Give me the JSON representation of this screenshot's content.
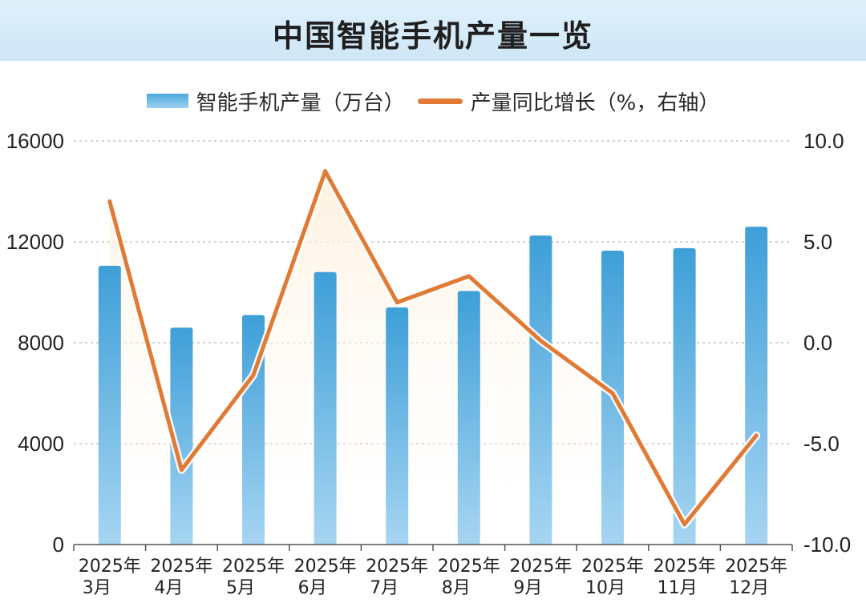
{
  "title": "中国智能手机产量一览",
  "chart_data": {
    "type": "bar+line",
    "categories": [
      [
        "2025年",
        "3月"
      ],
      [
        "2025年",
        "4月"
      ],
      [
        "2025年",
        "5月"
      ],
      [
        "2025年",
        "6月"
      ],
      [
        "2025年",
        "7月"
      ],
      [
        "2025年",
        "8月"
      ],
      [
        "2025年",
        "9月"
      ],
      [
        "2025年",
        "10月"
      ],
      [
        "2025年",
        "11月"
      ],
      [
        "2025年",
        "12月"
      ]
    ],
    "series": [
      {
        "name": "智能手机产量（万台）",
        "type": "bar",
        "axis": "left",
        "values": [
          11050,
          8600,
          9100,
          10800,
          9400,
          10050,
          12250,
          11650,
          11750,
          12600
        ]
      },
      {
        "name": "产量同比增长（%，右轴）",
        "type": "line",
        "axis": "right",
        "values": [
          7.0,
          -6.3,
          -1.6,
          8.5,
          2.0,
          3.3,
          0.1,
          -2.5,
          -9.0,
          -4.6
        ]
      }
    ],
    "y_left": {
      "ticks": [
        "0",
        "4000",
        "8000",
        "12000",
        "16000"
      ],
      "range": [
        0,
        16000
      ]
    },
    "y_right": {
      "ticks": [
        "-10.0",
        "-5.0",
        "0.0",
        "5.0",
        "10.0"
      ],
      "range": [
        -10,
        10
      ]
    },
    "grid": "dashed horizontal",
    "legend_position": "top-center",
    "colors": {
      "bar_top": "#3e9fd8",
      "bar_bottom": "#a6d5f2",
      "line": "#e07a35",
      "fill": "#fdf0dc",
      "grid": "#b9b9b9"
    }
  }
}
